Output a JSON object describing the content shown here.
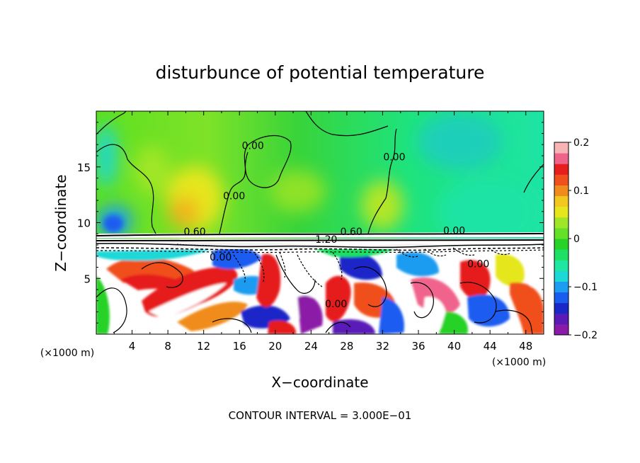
{
  "chart_data": {
    "type": "heatmap",
    "title": "disturbunce of potential temperature",
    "xlabel": "X−coordinate",
    "ylabel": "Z−coordinate",
    "x_unit_left": "(×1000 m)",
    "x_unit_right": "(×1000 m)",
    "xlim": [
      0,
      50
    ],
    "ylim": [
      0,
      20
    ],
    "x_ticks": [
      4,
      8,
      12,
      16,
      20,
      24,
      28,
      32,
      36,
      40,
      44,
      48
    ],
    "y_ticks": [
      5,
      10,
      15
    ],
    "footer": "CONTOUR INTERVAL = 3.000E−01",
    "colorbar": {
      "range": [
        -0.2,
        0.2
      ],
      "ticks": [
        {
          "value": 0.2,
          "label": "0.2"
        },
        {
          "value": 0.1,
          "label": "0.1"
        },
        {
          "value": 0,
          "label": "0"
        },
        {
          "value": -0.1,
          "label": "−0.1"
        },
        {
          "value": -0.2,
          "label": "−0.2"
        }
      ],
      "colors": [
        "#8c1aa8",
        "#5a1ab8",
        "#1a28c8",
        "#1a5cf0",
        "#1e9cf0",
        "#1ed8d8",
        "#1ee8a0",
        "#1ee064",
        "#28d228",
        "#64e028",
        "#a0e628",
        "#e6e61e",
        "#f0c81e",
        "#f08c1e",
        "#f0501e",
        "#e61e1e",
        "#f0648c",
        "#f8b4b4"
      ]
    },
    "contour_labels": [
      {
        "x": 17.5,
        "z": 16.6,
        "text": "0.00"
      },
      {
        "x": 33.3,
        "z": 15.6,
        "text": "0.00"
      },
      {
        "x": 15.4,
        "z": 12.1,
        "text": "0.00"
      },
      {
        "x": 11.0,
        "z": 8.9,
        "text": "0.60"
      },
      {
        "x": 28.5,
        "z": 8.9,
        "text": "0.60"
      },
      {
        "x": 40.0,
        "z": 9.0,
        "text": "0.00"
      },
      {
        "x": 25.7,
        "z": 8.2,
        "text": "1.20"
      },
      {
        "x": 13.9,
        "z": 6.6,
        "text": "0.00"
      },
      {
        "x": 26.8,
        "z": 2.4,
        "text": "0.00"
      },
      {
        "x": 42.7,
        "z": 6.0,
        "text": "0.00"
      }
    ],
    "field_summary": {
      "upper_region_z_above_8": "near zero, mostly 0 to +0.05 (green), with positive yellow/orange patches around x 8-14 and x 32, and negative blue/cyan near x 0-4, z 9-11 and x 36-48",
      "band_z_7_to_9": "strong disturbance band with black/white contours",
      "lower_region_z_below_8": "turbulent eddies spanning full range -0.2 to +0.2 (purple to pink), values beyond range shown white"
    }
  }
}
